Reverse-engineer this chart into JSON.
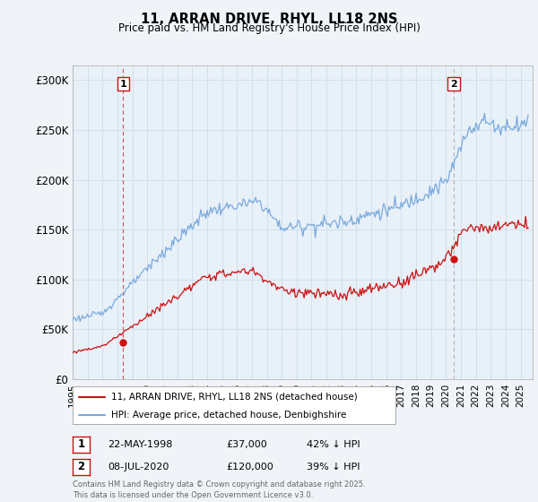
{
  "title_line1": "11, ARRAN DRIVE, RHYL, LL18 2NS",
  "title_line2": "Price paid vs. HM Land Registry's House Price Index (HPI)",
  "background_color": "#f0f4f8",
  "plot_bg_color": "#e8f0f8",
  "hpi_color": "#7aaadd",
  "price_color": "#cc1111",
  "dashed_color_1": "#cc1111",
  "dashed_color_2": "#aaaaaa",
  "ylabel_ticks": [
    "£0",
    "£50K",
    "£100K",
    "£150K",
    "£200K",
    "£250K",
    "£300K"
  ],
  "ytick_values": [
    0,
    50000,
    100000,
    150000,
    200000,
    250000,
    300000
  ],
  "ylim": [
    0,
    315000
  ],
  "xlim_start": 1995.0,
  "xlim_end": 2025.8,
  "sale1_date": 1998.385,
  "sale1_price": 37000,
  "sale1_label": "1",
  "sale2_date": 2020.52,
  "sale2_price": 120000,
  "sale2_label": "2",
  "legend_line1": "11, ARRAN DRIVE, RHYL, LL18 2NS (detached house)",
  "legend_line2": "HPI: Average price, detached house, Denbighshire",
  "table_row1": [
    "1",
    "22-MAY-1998",
    "£37,000",
    "42% ↓ HPI"
  ],
  "table_row2": [
    "2",
    "08-JUL-2020",
    "£120,000",
    "39% ↓ HPI"
  ],
  "footnote": "Contains HM Land Registry data © Crown copyright and database right 2025.\nThis data is licensed under the Open Government Licence v3.0.",
  "grid_color": "#c8d8e8"
}
